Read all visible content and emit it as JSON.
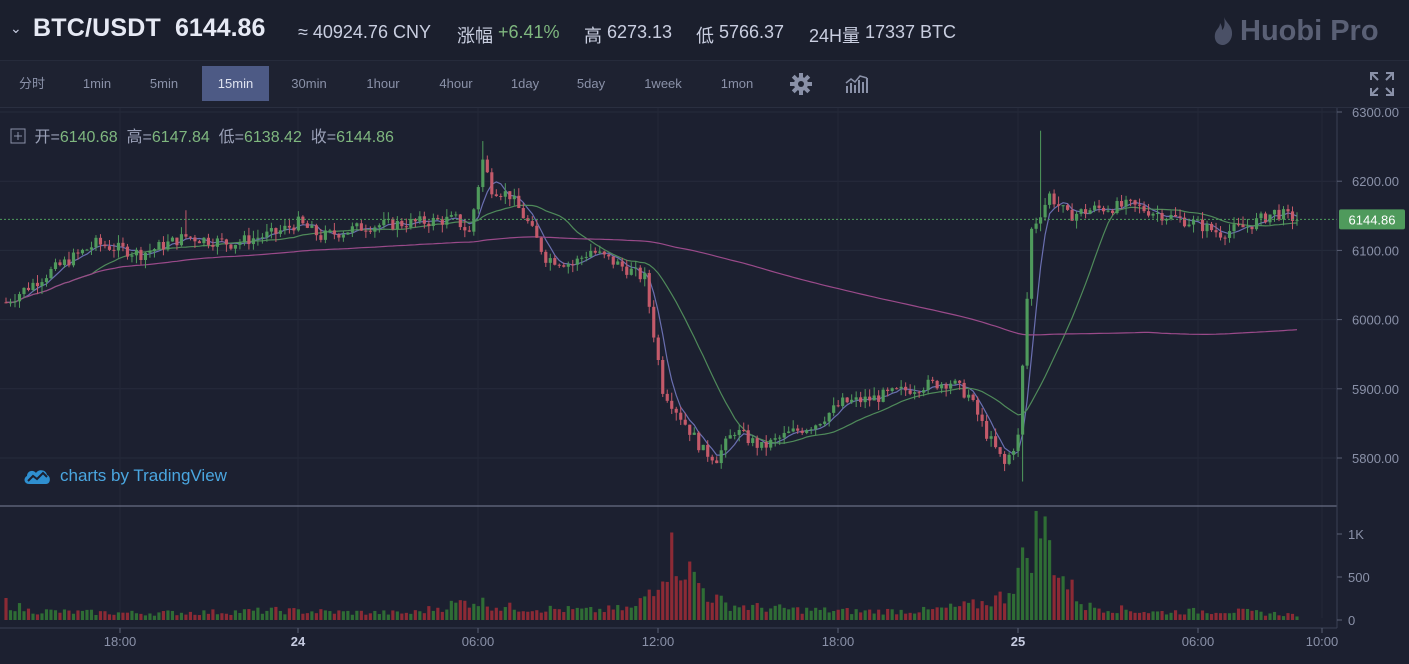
{
  "header": {
    "pair": "BTC/USDT",
    "price": "6144.86",
    "cny": "≈ 40924.76 CNY",
    "change_label": "涨幅",
    "change_value": "+6.41%",
    "high_label": "高",
    "high_value": "6273.13",
    "low_label": "低",
    "low_value": "5766.37",
    "vol_label": "24H量",
    "vol_value": "17337 BTC",
    "logo": "Huobi Pro"
  },
  "toolbar": {
    "timeframes": [
      "分时",
      "1min",
      "5min",
      "15min",
      "30min",
      "1hour",
      "4hour",
      "1day",
      "5day",
      "1week",
      "1mon"
    ],
    "active": "15min"
  },
  "ohlc": {
    "open_label": "开=",
    "open": "6140.68",
    "high_label": "高=",
    "high": "6147.84",
    "low_label": "低=",
    "low": "6138.42",
    "close_label": "收=",
    "close": "6144.86"
  },
  "watermark": "charts by TradingView",
  "colors": {
    "up": "#4f9a5c",
    "down": "#c45a6a",
    "accent": "#4d5a85",
    "price_tag": "#4f9a5c"
  },
  "chart_data": {
    "type": "candlestick",
    "y_ticks": [
      "6300.00",
      "6200.00",
      "6100.00",
      "6000.00",
      "5900.00",
      "5800.00"
    ],
    "y_range": [
      5735,
      6310
    ],
    "last_price": "6144.86",
    "x_ticks": [
      "18:00",
      "24",
      "06:00",
      "12:00",
      "18:00",
      "25",
      "06:00",
      "10:00"
    ],
    "volume_ticks": [
      "1K",
      "500",
      "0"
    ],
    "volume_range": [
      0,
      1250
    ],
    "anchors": [
      [
        0,
        6025
      ],
      [
        10,
        6070
      ],
      [
        20,
        6110
      ],
      [
        30,
        6095
      ],
      [
        40,
        6120
      ],
      [
        50,
        6110
      ],
      [
        60,
        6125
      ],
      [
        65,
        6140
      ],
      [
        70,
        6120
      ],
      [
        80,
        6135
      ],
      [
        90,
        6140
      ],
      [
        100,
        6145
      ],
      [
        103,
        6125
      ],
      [
        106,
        6230
      ],
      [
        108,
        6190
      ],
      [
        112,
        6180
      ],
      [
        116,
        6140
      ],
      [
        120,
        6090
      ],
      [
        126,
        6080
      ],
      [
        130,
        6100
      ],
      [
        136,
        6080
      ],
      [
        142,
        6060
      ],
      [
        146,
        5900
      ],
      [
        150,
        5860
      ],
      [
        155,
        5810
      ],
      [
        158,
        5800
      ],
      [
        162,
        5840
      ],
      [
        168,
        5815
      ],
      [
        174,
        5835
      ],
      [
        180,
        5850
      ],
      [
        186,
        5880
      ],
      [
        192,
        5885
      ],
      [
        198,
        5895
      ],
      [
        204,
        5905
      ],
      [
        210,
        5910
      ],
      [
        214,
        5890
      ],
      [
        218,
        5835
      ],
      [
        222,
        5790
      ],
      [
        225,
        5830
      ],
      [
        228,
        6130
      ],
      [
        232,
        6180
      ],
      [
        236,
        6150
      ],
      [
        242,
        6160
      ],
      [
        250,
        6165
      ],
      [
        258,
        6150
      ],
      [
        264,
        6140
      ],
      [
        270,
        6125
      ],
      [
        276,
        6135
      ],
      [
        282,
        6155
      ],
      [
        287,
        6145
      ]
    ],
    "volume_anchors": [
      [
        0,
        200
      ],
      [
        5,
        110
      ],
      [
        15,
        90
      ],
      [
        30,
        80
      ],
      [
        45,
        90
      ],
      [
        60,
        110
      ],
      [
        75,
        90
      ],
      [
        90,
        80
      ],
      [
        104,
        230
      ],
      [
        110,
        150
      ],
      [
        120,
        130
      ],
      [
        130,
        110
      ],
      [
        140,
        140
      ],
      [
        144,
        420
      ],
      [
        148,
        780
      ],
      [
        152,
        560
      ],
      [
        156,
        300
      ],
      [
        160,
        180
      ],
      [
        166,
        150
      ],
      [
        176,
        120
      ],
      [
        190,
        100
      ],
      [
        205,
        110
      ],
      [
        216,
        180
      ],
      [
        222,
        280
      ],
      [
        226,
        650
      ],
      [
        230,
        1120
      ],
      [
        235,
        480
      ],
      [
        240,
        160
      ],
      [
        255,
        90
      ],
      [
        270,
        110
      ],
      [
        287,
        60
      ]
    ],
    "moving_averages": [
      {
        "color": "#6a6fb0",
        "period": 5
      },
      {
        "color": "#4f8a5a",
        "period": 10
      },
      {
        "color": "#9a4a8a",
        "period": 30
      }
    ]
  }
}
